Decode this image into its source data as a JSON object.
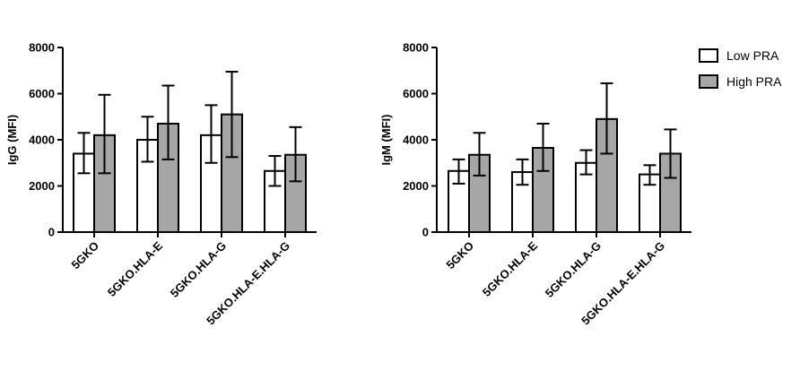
{
  "colors": {
    "low": "#ffffff",
    "high": "#a6a6a6",
    "stroke": "#000000"
  },
  "legend": {
    "placement": "top-right",
    "items": [
      {
        "label": "Low PRA",
        "color": "#ffffff"
      },
      {
        "label": "High PRA",
        "color": "#a6a6a6"
      }
    ]
  },
  "chart_data": [
    {
      "type": "bar",
      "ylabel": "IgG (MFI)",
      "ylim": [
        0,
        8000
      ],
      "yticks": [
        0,
        2000,
        4000,
        6000,
        8000
      ],
      "ytick_labels": [
        "0",
        "2000",
        "4000",
        "6000",
        "8000"
      ],
      "categories": [
        "5GKO",
        "5GKO.HLA-E",
        "5GKO.HLA-G",
        "5GKO.HLA-E.HLA-G"
      ],
      "series": [
        {
          "name": "Low PRA",
          "values": [
            3400,
            4000,
            4200,
            2650
          ],
          "err_low": [
            2550,
            3050,
            3000,
            2000
          ],
          "err_high": [
            4300,
            5000,
            5500,
            3300
          ]
        },
        {
          "name": "High PRA",
          "values": [
            4200,
            4700,
            5100,
            3350
          ],
          "err_low": [
            2550,
            3150,
            3250,
            2200
          ],
          "err_high": [
            5950,
            6350,
            6950,
            4550
          ]
        }
      ]
    },
    {
      "type": "bar",
      "ylabel": "IgM (MFI)",
      "ylim": [
        0,
        8000
      ],
      "yticks": [
        0,
        2000,
        4000,
        6000,
        8000
      ],
      "ytick_labels": [
        "0",
        "2000",
        "4000",
        "6000",
        "8000"
      ],
      "categories": [
        "5GKO",
        "5GKO.HLA-E",
        "5GKO.HLA-G",
        "5GKO.HLA-E.HLA-G"
      ],
      "series": [
        {
          "name": "Low PRA",
          "values": [
            2650,
            2600,
            3000,
            2500
          ],
          "err_low": [
            2100,
            2050,
            2500,
            2050
          ],
          "err_high": [
            3150,
            3150,
            3550,
            2900
          ]
        },
        {
          "name": "High PRA",
          "values": [
            3350,
            3650,
            4900,
            3400
          ],
          "err_low": [
            2450,
            2650,
            3400,
            2350
          ],
          "err_high": [
            4300,
            4700,
            6450,
            4450
          ]
        }
      ]
    }
  ]
}
